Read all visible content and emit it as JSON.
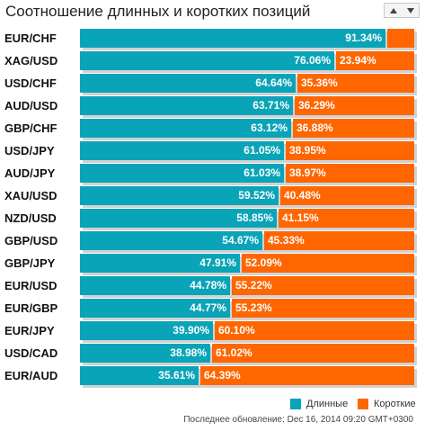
{
  "title": "Соотношение длинных и коротких позиций",
  "sort_controls": {
    "up_icon": "triangle-up-icon",
    "down_icon": "triangle-down-icon"
  },
  "colors": {
    "long": "#0aa4b8",
    "short": "#ff6600"
  },
  "legend": {
    "long_label": "Длинные",
    "short_label": "Короткие"
  },
  "footer": {
    "updated": "Последнее обновление: Dec 16, 2014 09:20 GMT+0300"
  },
  "chart_data": {
    "type": "bar",
    "stacked": true,
    "orientation": "horizontal",
    "categories": [
      "EUR/CHF",
      "XAG/USD",
      "USD/CHF",
      "AUD/USD",
      "GBP/CHF",
      "USD/JPY",
      "AUD/JPY",
      "XAU/USD",
      "NZD/USD",
      "GBP/USD",
      "GBP/JPY",
      "EUR/USD",
      "EUR/GBP",
      "EUR/JPY",
      "USD/CAD",
      "EUR/AUD"
    ],
    "series": [
      {
        "name": "Длинные",
        "values": [
          91.34,
          76.06,
          64.64,
          63.71,
          63.12,
          61.05,
          61.03,
          59.52,
          58.85,
          54.67,
          47.91,
          44.78,
          44.77,
          39.9,
          38.98,
          35.61
        ],
        "labels": [
          "91.34%",
          "76.06%",
          "64.64%",
          "63.71%",
          "63.12%",
          "61.05%",
          "61.03%",
          "59.52%",
          "58.85%",
          "54.67%",
          "47.91%",
          "44.78%",
          "44.77%",
          "39.90%",
          "38.98%",
          "35.61%"
        ]
      },
      {
        "name": "Короткие",
        "values": [
          8.66,
          23.94,
          35.36,
          36.29,
          36.88,
          38.95,
          38.97,
          40.48,
          41.15,
          45.33,
          52.09,
          55.22,
          55.23,
          60.1,
          61.02,
          64.39
        ],
        "labels": [
          "",
          "23.94%",
          "35.36%",
          "36.29%",
          "36.88%",
          "38.95%",
          "38.97%",
          "40.48%",
          "41.15%",
          "45.33%",
          "52.09%",
          "55.22%",
          "55.23%",
          "60.10%",
          "61.02%",
          "64.39%"
        ]
      }
    ],
    "xlim": [
      0,
      100
    ],
    "legend_position": "bottom-right",
    "grid": false
  }
}
